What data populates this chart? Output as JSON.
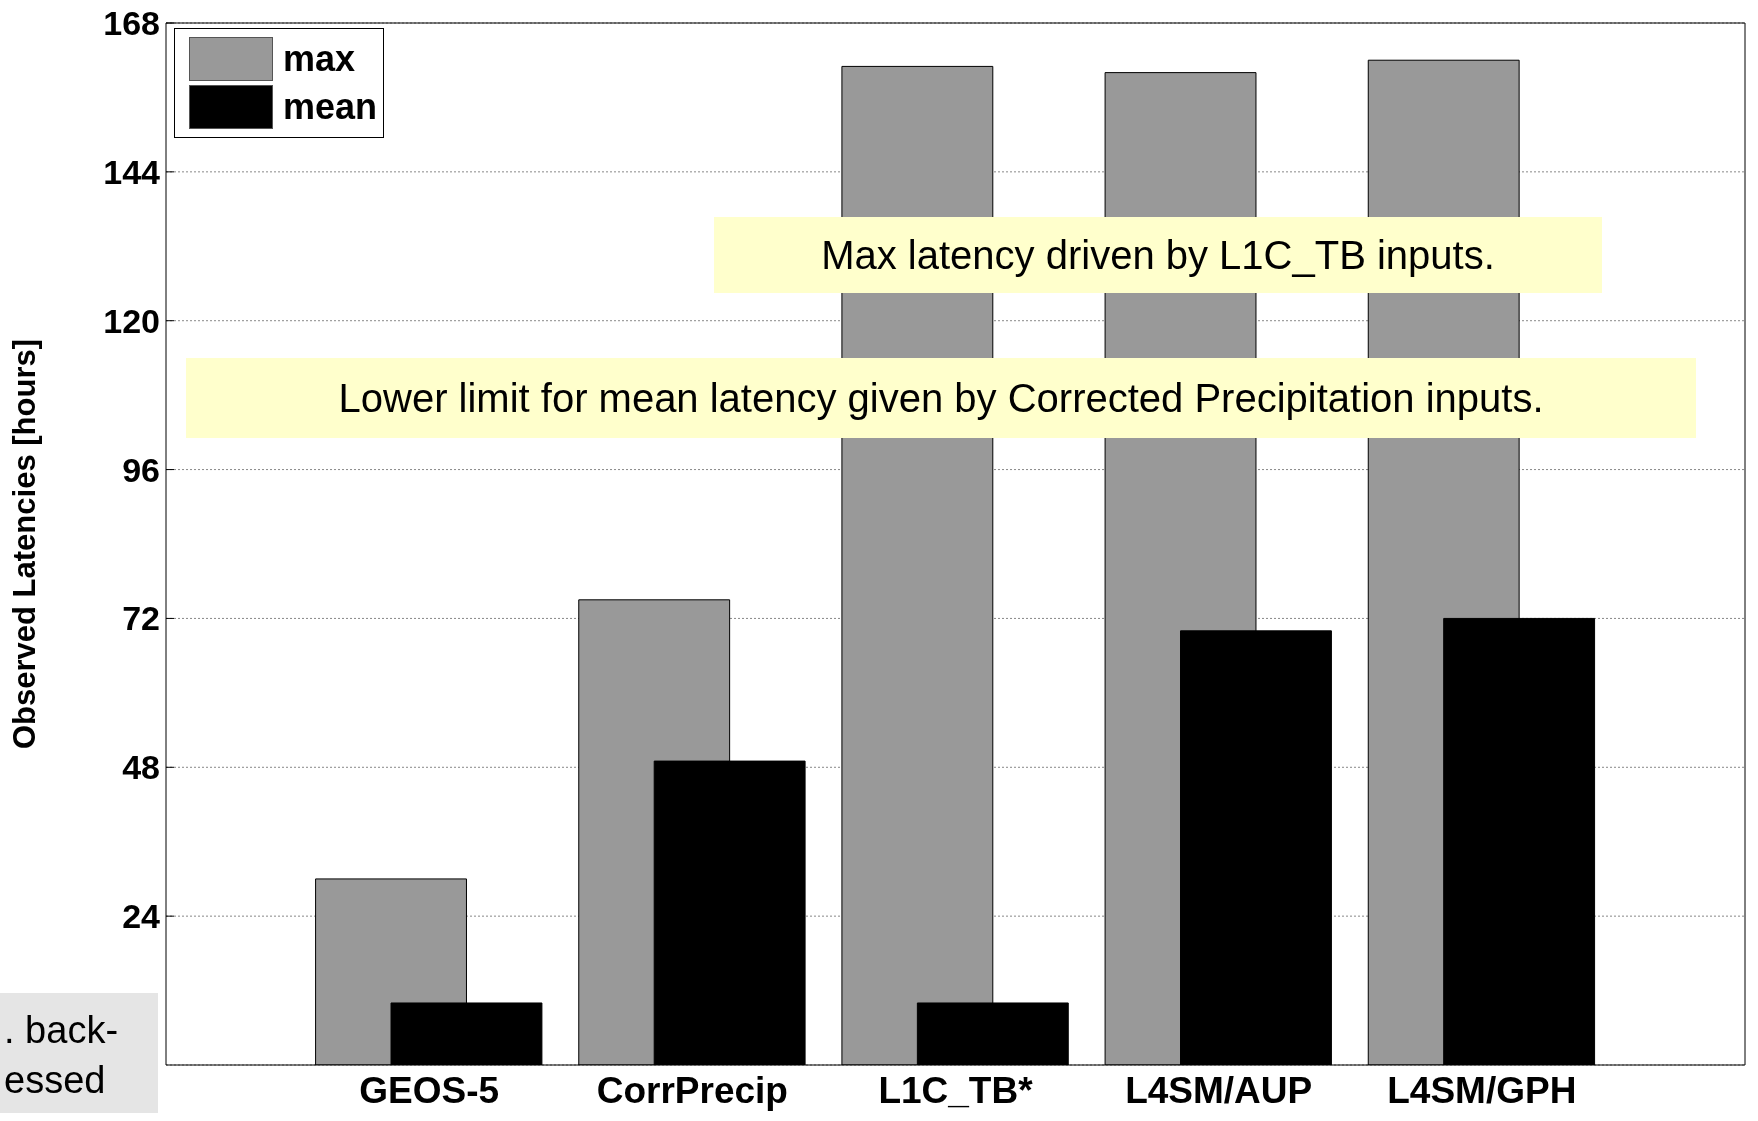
{
  "chart_data": {
    "type": "bar",
    "ylabel": "Observed Latencies [hours]",
    "categories": [
      "GEOS-5",
      "CorrPrecip",
      "L1C_TB*",
      "L4SM/AUP",
      "L4SM/GPH"
    ],
    "series": [
      {
        "name": "max",
        "color": "#999999",
        "values": [
          30,
          75,
          161,
          160,
          162
        ]
      },
      {
        "name": "mean",
        "color": "#000000",
        "values": [
          10,
          49,
          10,
          70,
          72
        ]
      }
    ],
    "ylim": [
      0,
      168
    ],
    "yticks": [
      24,
      48,
      72,
      96,
      120,
      144,
      168
    ],
    "grid": "y",
    "legend": "top left",
    "annotations": [
      "Max latency driven by L1C_TB inputs.",
      "Lower limit for mean latency given by Corrected Precipitation inputs.",
      ". back- essed"
    ]
  }
}
